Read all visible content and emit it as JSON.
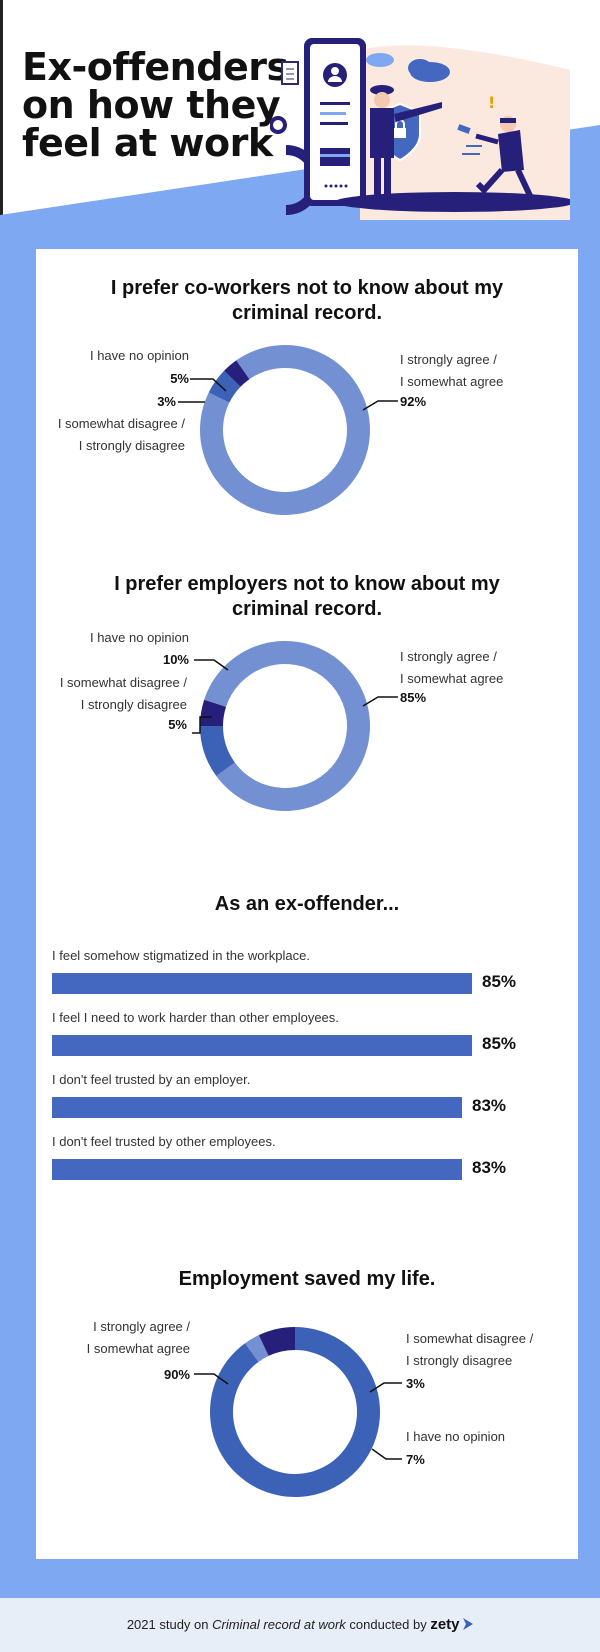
{
  "header": {
    "title_lines": [
      "Ex-offenders",
      "on how they",
      "feel at work"
    ]
  },
  "colors": {
    "agree": "#7290d2",
    "no_opinion": "#3b62b6",
    "disagree": "#27207a",
    "bar": "#4468c0",
    "frame": "#7ea8f2"
  },
  "chart_data": [
    {
      "type": "pie",
      "title": "I prefer co-workers not to know about my criminal record.",
      "labels": [
        "I strongly agree / I somewhat agree",
        "I have no opinion",
        "I somewhat disagree / I strongly disagree"
      ],
      "values": [
        92,
        5,
        3
      ]
    },
    {
      "type": "pie",
      "title": "I prefer employers not to know about my criminal record.",
      "labels": [
        "I strongly agree / I somewhat agree",
        "I have no opinion",
        "I somewhat disagree / I strongly disagree"
      ],
      "values": [
        85,
        10,
        5
      ]
    },
    {
      "type": "bar",
      "title": "As an ex-offender...",
      "categories": [
        "I feel somehow stigmatized in the workplace.",
        "I feel I need to work harder than other employees.",
        "I don't feel trusted by an employer.",
        "I don't feel trusted by other employees."
      ],
      "values": [
        85,
        85,
        83,
        83
      ]
    },
    {
      "type": "pie",
      "title": "Employment saved my life.",
      "labels": [
        "I strongly agree / I somewhat agree",
        "I somewhat disagree / I strongly disagree",
        "I have no opinion"
      ],
      "values": [
        90,
        3,
        7
      ]
    }
  ],
  "pie_text": {
    "c1": {
      "title_lines": [
        "I prefer co-workers not to know about my",
        "criminal record."
      ],
      "agree_lines": [
        "I strongly agree /",
        "I somewhat agree"
      ],
      "agree_pct": "92%",
      "noop_line": "I have no opinion",
      "noop_pct": "5%",
      "dis_pct": "3%",
      "dis_lines": [
        "I somewhat disagree /",
        "I strongly disagree"
      ]
    },
    "c2": {
      "title_lines": [
        "I prefer employers not to know about my",
        "criminal record."
      ],
      "agree_lines": [
        "I strongly agree /",
        "I somewhat agree"
      ],
      "agree_pct": "85%",
      "noop_line": "I have no opinion",
      "noop_pct": "10%",
      "dis_lines": [
        "I somewhat disagree /",
        "I strongly disagree"
      ],
      "dis_pct": "5%"
    },
    "c4": {
      "title": "Employment saved my life.",
      "agree_lines": [
        "I strongly agree /",
        "I somewhat agree"
      ],
      "agree_pct": "90%",
      "dis_lines": [
        "I somewhat disagree /",
        "I strongly disagree"
      ],
      "dis_pct": "3%",
      "noop_line": "I have no opinion",
      "noop_pct": "7%"
    }
  },
  "bar_text": {
    "title": "As an ex-offender...",
    "values_text": [
      "85%",
      "85%",
      "83%",
      "83%"
    ]
  },
  "footer": {
    "prefix": "2021 study on ",
    "study": "Criminal record at work",
    "suffix": " conducted by ",
    "brand": "zety"
  }
}
